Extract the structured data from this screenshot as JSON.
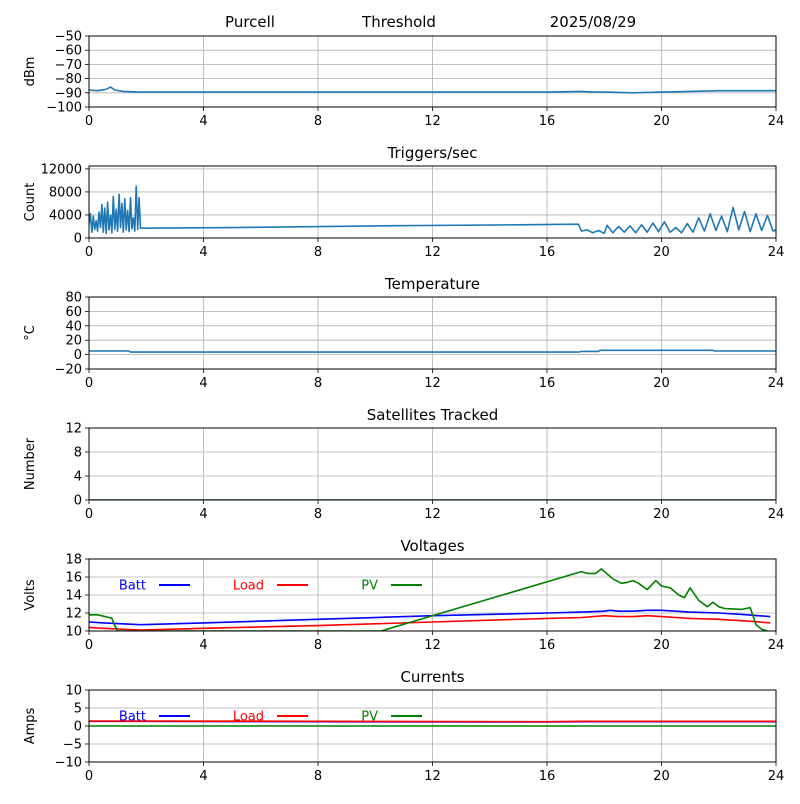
{
  "header": {
    "site": "Purcell",
    "mode": "Threshold",
    "date": "2025/08/29"
  },
  "chart_data": [
    {
      "type": "line",
      "title": "",
      "xlabel": "",
      "ylabel": "dBm",
      "xlim": [
        0,
        24
      ],
      "ylim": [
        -100,
        -50
      ],
      "xticks": [
        0,
        4,
        8,
        12,
        16,
        20,
        24
      ],
      "yticks": [
        -100,
        -90,
        -80,
        -70,
        -60,
        -50
      ],
      "grid": true,
      "series": [
        {
          "color": "#1f77b4",
          "x": [
            0,
            0.3,
            0.6,
            0.75,
            0.9,
            1.2,
            1.8,
            4,
            8,
            12,
            16,
            17.2,
            17.6,
            18,
            19,
            20,
            21,
            22,
            23,
            24
          ],
          "y": [
            -88,
            -88.5,
            -87.5,
            -86,
            -88,
            -89,
            -89.5,
            -89.5,
            -89.5,
            -89.5,
            -89.5,
            -89,
            -89.5,
            -89.5,
            -90,
            -89.5,
            -89,
            -88.5,
            -88.5,
            -88.5
          ]
        }
      ]
    },
    {
      "type": "line",
      "title": "Triggers/sec",
      "xlabel": "",
      "ylabel": "Count",
      "xlim": [
        0,
        24
      ],
      "ylim": [
        0,
        12500
      ],
      "xticks": [
        0,
        4,
        8,
        12,
        16,
        20,
        24
      ],
      "yticks": [
        0,
        4000,
        8000,
        12000
      ],
      "grid": true,
      "series": [
        {
          "color": "#1f77b4",
          "x": [
            0,
            0.05,
            0.1,
            0.15,
            0.2,
            0.25,
            0.3,
            0.35,
            0.4,
            0.45,
            0.5,
            0.55,
            0.6,
            0.65,
            0.7,
            0.75,
            0.8,
            0.85,
            0.9,
            0.95,
            1.0,
            1.05,
            1.1,
            1.15,
            1.2,
            1.25,
            1.3,
            1.35,
            1.4,
            1.45,
            1.5,
            1.55,
            1.6,
            1.65,
            1.7,
            1.75,
            1.8,
            5,
            10,
            15,
            17.1,
            17.2,
            17.4,
            17.6,
            17.8,
            18.0,
            18.1,
            18.3,
            18.5,
            18.7,
            18.9,
            19.1,
            19.3,
            19.5,
            19.7,
            19.9,
            20.1,
            20.3,
            20.5,
            20.7,
            20.9,
            21.1,
            21.3,
            21.5,
            21.7,
            21.9,
            22.1,
            22.3,
            22.5,
            22.7,
            22.9,
            23.1,
            23.3,
            23.5,
            23.7,
            23.9,
            24
          ],
          "y": [
            2500,
            4200,
            1000,
            3800,
            1500,
            3000,
            1200,
            4500,
            1800,
            5800,
            1000,
            5200,
            800,
            6200,
            1400,
            4000,
            900,
            7200,
            1500,
            5000,
            1200,
            7600,
            1800,
            6000,
            1000,
            6800,
            1400,
            4800,
            1100,
            7000,
            1600,
            3500,
            1200,
            9000,
            1500,
            7000,
            1700,
            1800,
            2100,
            2300,
            2400,
            1200,
            1400,
            900,
            1300,
            800,
            2200,
            900,
            2000,
            1000,
            2100,
            900,
            2300,
            1000,
            2600,
            1100,
            2800,
            1000,
            1800,
            900,
            2500,
            1000,
            3500,
            1200,
            4200,
            1300,
            3800,
            1100,
            5300,
            1400,
            4600,
            1100,
            4200,
            1300,
            3900,
            1200,
            1400
          ]
        }
      ]
    },
    {
      "type": "line",
      "title": "Temperature",
      "xlabel": "",
      "ylabel": "°C",
      "xlim": [
        0,
        24
      ],
      "ylim": [
        -20,
        80
      ],
      "xticks": [
        0,
        4,
        8,
        12,
        16,
        20,
        24
      ],
      "yticks": [
        -20,
        0,
        20,
        40,
        60,
        80
      ],
      "grid": true,
      "series": [
        {
          "color": "#1f77b4",
          "x": [
            0,
            1.4,
            1.45,
            8,
            17.1,
            17.2,
            17.8,
            17.85,
            21.8,
            21.85,
            24
          ],
          "y": [
            5,
            5,
            3.5,
            3.5,
            3.5,
            4.5,
            4.5,
            6,
            6,
            5,
            5
          ]
        }
      ]
    },
    {
      "type": "line",
      "title": "Satellites Tracked",
      "xlabel": "",
      "ylabel": "Number",
      "xlim": [
        0,
        24
      ],
      "ylim": [
        0,
        12
      ],
      "xticks": [
        0,
        4,
        8,
        12,
        16,
        20,
        24
      ],
      "yticks": [
        0,
        4,
        8,
        12
      ],
      "grid": true,
      "series": [
        {
          "color": "#006400",
          "x": [
            0,
            24
          ],
          "y": [
            0,
            0
          ]
        }
      ]
    },
    {
      "type": "line",
      "title": "Voltages",
      "xlabel": "",
      "ylabel": "Volts",
      "xlim": [
        0,
        24
      ],
      "ylim": [
        10,
        18
      ],
      "xticks": [
        0,
        4,
        8,
        12,
        16,
        20,
        24
      ],
      "yticks": [
        10,
        12,
        14,
        16,
        18
      ],
      "grid": true,
      "legend": "top-left",
      "series": [
        {
          "name": "Batt",
          "color": "#0000ff",
          "x": [
            0,
            0.5,
            1.8,
            4,
            8,
            12,
            16,
            17.2,
            18,
            18.2,
            18.5,
            19,
            19.5,
            19.7,
            20,
            20.5,
            21,
            22,
            23,
            23.8
          ],
          "y": [
            11.0,
            10.9,
            10.7,
            10.9,
            11.3,
            11.7,
            12.0,
            12.1,
            12.2,
            12.3,
            12.2,
            12.2,
            12.3,
            12.3,
            12.3,
            12.2,
            12.1,
            12.0,
            11.8,
            11.6
          ]
        },
        {
          "name": "Load",
          "color": "#ff0000",
          "x": [
            0,
            0.5,
            1.8,
            4,
            8,
            12,
            16,
            17.2,
            18,
            18.5,
            19,
            19.5,
            20,
            20.5,
            21,
            22,
            23,
            23.8
          ],
          "y": [
            10.4,
            10.3,
            10.1,
            10.3,
            10.6,
            11.0,
            11.4,
            11.5,
            11.7,
            11.6,
            11.6,
            11.7,
            11.6,
            11.5,
            11.4,
            11.3,
            11.1,
            10.9
          ]
        },
        {
          "name": "PV",
          "color": "#008000",
          "x": [
            0,
            0.3,
            0.7,
            0.8,
            0.9,
            1.0,
            10.2,
            17.2,
            17.4,
            17.7,
            17.9,
            18.3,
            18.6,
            18.8,
            19.0,
            19.2,
            19.5,
            19.8,
            20.0,
            20.3,
            20.6,
            20.8,
            21.0,
            21.3,
            21.6,
            21.8,
            22.0,
            22.2,
            22.8,
            23.1,
            23.3,
            23.5,
            23.7
          ],
          "y": [
            11.8,
            11.8,
            11.5,
            11.4,
            10.6,
            10.0,
            10.0,
            16.6,
            16.4,
            16.4,
            16.9,
            15.8,
            15.3,
            15.4,
            15.6,
            15.3,
            14.6,
            15.6,
            15.0,
            14.8,
            14.0,
            13.7,
            14.8,
            13.4,
            12.7,
            13.2,
            12.7,
            12.5,
            12.4,
            12.6,
            10.7,
            10.2,
            10.0
          ]
        }
      ]
    },
    {
      "type": "line",
      "title": "Currents",
      "xlabel": "",
      "ylabel": "Amps",
      "xlim": [
        0,
        24
      ],
      "ylim": [
        -10,
        10
      ],
      "xticks": [
        0,
        4,
        8,
        12,
        16,
        20,
        24
      ],
      "yticks": [
        -10,
        -5,
        0,
        5,
        10
      ],
      "grid": true,
      "legend": "top-left",
      "series": [
        {
          "name": "Batt",
          "color": "#0000ff",
          "x": [
            0,
            8,
            16,
            17.2,
            24
          ],
          "y": [
            1.3,
            1.2,
            1.1,
            1.2,
            1.2
          ]
        },
        {
          "name": "Load",
          "color": "#ff0000",
          "x": [
            0,
            8,
            16,
            17.2,
            24
          ],
          "y": [
            1.4,
            1.3,
            1.2,
            1.3,
            1.3
          ]
        },
        {
          "name": "PV",
          "color": "#008000",
          "x": [
            0,
            24
          ],
          "y": [
            0,
            0
          ]
        }
      ]
    }
  ]
}
